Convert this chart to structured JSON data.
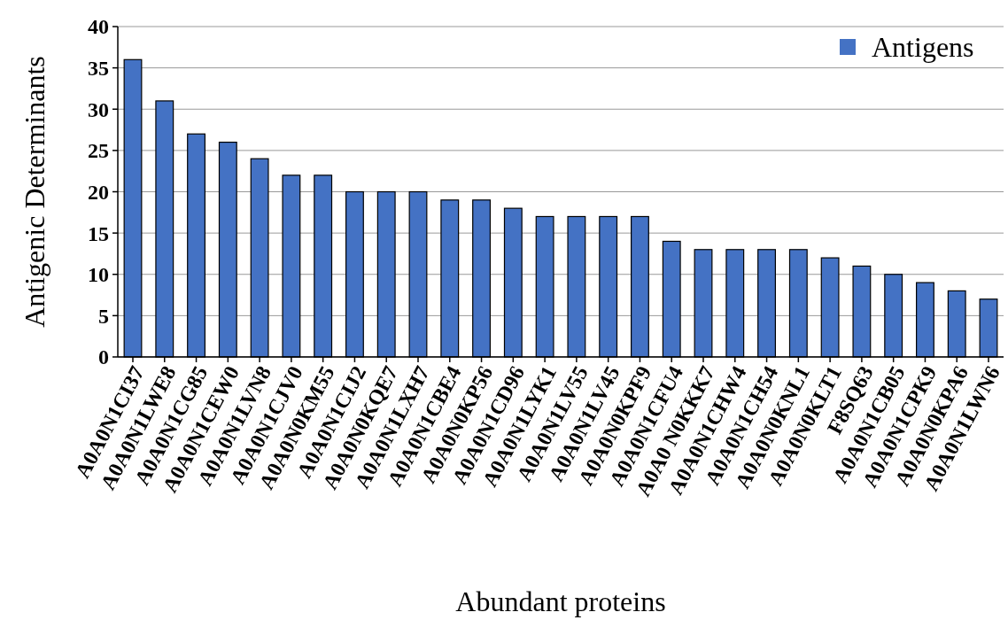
{
  "chart_data": {
    "type": "bar",
    "xlabel": "Abundant proteins",
    "ylabel": "Antigenic Determinants",
    "categories": [
      "A0A0N1CI37",
      "A0A0N1LWE8",
      "A0A0N1CG85",
      "A0A0N1CEW0",
      "A0A0N1LVN8",
      "A0A0N1CJV0",
      "A0A0N0KM55",
      "A0A0N1CIJ2",
      "A0A0N0KQE7",
      "A0A0N1LXH7",
      "A0A0N1CBE4",
      "A0A0N0KP56",
      "A0A0N1CD96",
      "A0A0N1LYK1",
      "A0A0N1LV55",
      "A0A0N1LV45",
      "A0A0N0KPF9",
      "A0A0N1CFU4",
      "A0A0 N0KKK7",
      "A0A0N1CHW4",
      "A0A0N1CH54",
      "A0A0N0KNL1",
      "A0A0N0KLT1",
      "F8SQ63",
      "A0A0N1CB05",
      "A0A0N1CPK9",
      "A0A0N0KPA6",
      "A0A0N1LWN6"
    ],
    "series": [
      {
        "name": "Antigens",
        "color": "#4472c4",
        "values": [
          36,
          31,
          27,
          26,
          24,
          22,
          22,
          20,
          20,
          20,
          19,
          19,
          18,
          17,
          17,
          17,
          17,
          14,
          13,
          13,
          13,
          13,
          12,
          11,
          10,
          9,
          8,
          7
        ]
      }
    ],
    "ylim": [
      0,
      40
    ],
    "yticks": [
      0,
      5,
      10,
      15,
      20,
      25,
      30,
      35,
      40
    ],
    "grid": "y",
    "legend": "top right"
  }
}
